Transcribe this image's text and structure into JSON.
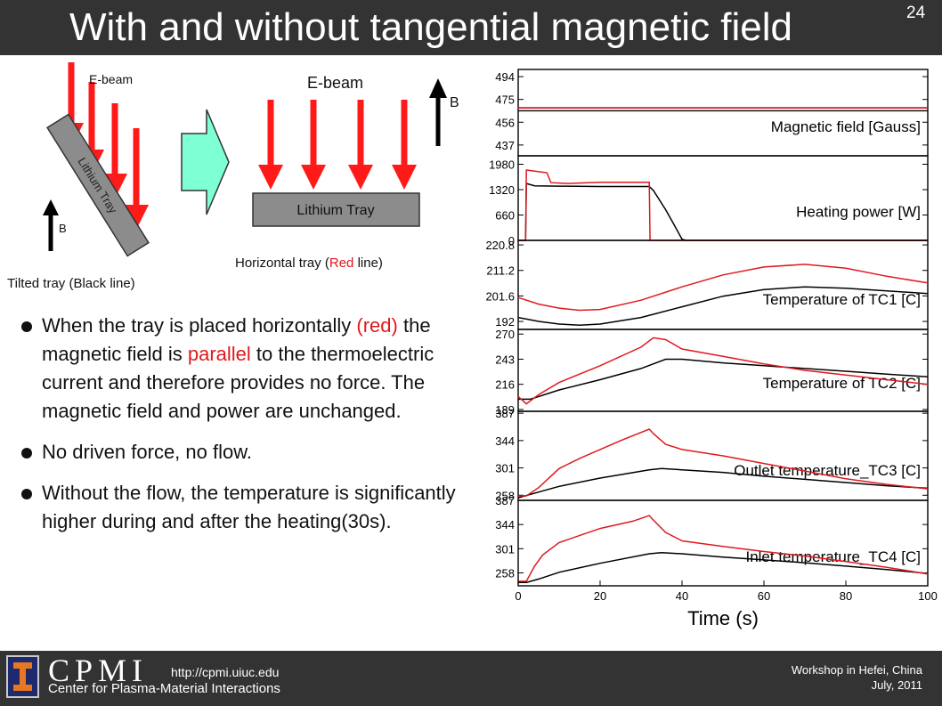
{
  "slide": {
    "title": "With and without tangential magnetic field",
    "number": "24"
  },
  "diagram": {
    "left": {
      "ebeam_label": "E-beam",
      "tray_label": "Lithium Tray",
      "b_label": "B",
      "caption_prefix": "Tilted tray (",
      "caption_color_word": "Black",
      "caption_suffix": " line)"
    },
    "right": {
      "ebeam_label": "E-beam",
      "tray_label": "Lithium Tray",
      "b_label": "B",
      "caption_prefix": "Horizontal tray (",
      "caption_color_word": "Red",
      "caption_suffix": " line)"
    },
    "arrow_color": "#7fffd4",
    "beam_color": "#ff1a1a",
    "tray_color": "#8c8c8c"
  },
  "bullets": {
    "b1": {
      "t1": "When the tray is placed horizontally ",
      "t2": "(red)",
      "t3": " the magnetic field is ",
      "t4": "parallel",
      "t5": " to the thermoelectric current and therefore provides no force.  The magnetic field and power are unchanged."
    },
    "b2": "No driven force, no flow.",
    "b3": "Without the flow, the temperature is significantly higher during and after the heating(30s)."
  },
  "footer": {
    "logo_letters": "CPMI",
    "url": "http://cpmi.uiuc.edu",
    "org_name": "Center for Plasma-Material Interactions",
    "workshop": "Workshop in Hefei, China",
    "date": "July, 2011"
  },
  "chart_data": {
    "type": "line",
    "xlabel": "Time (s)",
    "xlim": [
      0,
      100
    ],
    "xticks": [
      0,
      20,
      40,
      60,
      80,
      100
    ],
    "colors": {
      "tilted": "#000000",
      "horizontal": "#e0191e"
    },
    "panels": [
      {
        "label": "Magnetic field [Gauss]",
        "ylim": [
          428,
          500
        ],
        "yticks": [
          494,
          475,
          456,
          437
        ],
        "break_between": [
          456,
          475
        ],
        "series": [
          {
            "color": "tilted",
            "points": [
              [
                0,
                468
              ],
              [
                100,
                468
              ]
            ]
          },
          {
            "color": "horizontal",
            "points": [
              [
                0,
                468
              ],
              [
                100,
                468
              ]
            ]
          }
        ]
      },
      {
        "label": "Heating power [W]",
        "ylim": [
          0,
          2200
        ],
        "yticks": [
          1980,
          1320,
          660,
          0
        ],
        "series": [
          {
            "color": "tilted",
            "points": [
              [
                0,
                0
              ],
              [
                1.8,
                0
              ],
              [
                2.0,
                1480
              ],
              [
                4,
                1420
              ],
              [
                10,
                1410
              ],
              [
                20,
                1400
              ],
              [
                32,
                1400
              ],
              [
                33,
                1300
              ],
              [
                36,
                800
              ],
              [
                38,
                420
              ],
              [
                40,
                30
              ],
              [
                41,
                0
              ],
              [
                100,
                0
              ]
            ]
          },
          {
            "color": "horizontal",
            "points": [
              [
                0,
                0
              ],
              [
                1.8,
                0
              ],
              [
                2.0,
                1830
              ],
              [
                7,
                1760
              ],
              [
                8,
                1500
              ],
              [
                12,
                1480
              ],
              [
                20,
                1510
              ],
              [
                32,
                1510
              ],
              [
                32.2,
                0
              ],
              [
                100,
                0
              ]
            ]
          }
        ]
      },
      {
        "label": "Temperature of TC1 [C]",
        "ylim": [
          189.0,
          222.5
        ],
        "yticks": [
          220.8,
          211.2,
          201.6,
          192.0
        ],
        "series": [
          {
            "color": "tilted",
            "points": [
              [
                0,
                193.5
              ],
              [
                5,
                192.0
              ],
              [
                10,
                191.0
              ],
              [
                15,
                190.6
              ],
              [
                20,
                191.0
              ],
              [
                30,
                193.5
              ],
              [
                40,
                197.5
              ],
              [
                50,
                201.5
              ],
              [
                60,
                204.0
              ],
              [
                70,
                205.0
              ],
              [
                80,
                204.5
              ],
              [
                90,
                203.5
              ],
              [
                100,
                202.5
              ]
            ]
          },
          {
            "color": "horizontal",
            "points": [
              [
                0,
                201.0
              ],
              [
                5,
                198.5
              ],
              [
                10,
                197.0
              ],
              [
                15,
                196.2
              ],
              [
                20,
                196.5
              ],
              [
                30,
                200.0
              ],
              [
                40,
                205.0
              ],
              [
                50,
                209.5
              ],
              [
                60,
                212.5
              ],
              [
                70,
                213.5
              ],
              [
                80,
                212.0
              ],
              [
                90,
                209.0
              ],
              [
                100,
                206.5
              ]
            ]
          }
        ]
      },
      {
        "label": "Temperature of TC2 [C]",
        "ylim": [
          187,
          275
        ],
        "yticks": [
          270,
          243,
          216,
          189
        ],
        "series": [
          {
            "color": "tilted",
            "points": [
              [
                0,
                200
              ],
              [
                3,
                200
              ],
              [
                10,
                210
              ],
              [
                20,
                221
              ],
              [
                30,
                233
              ],
              [
                36,
                243
              ],
              [
                40,
                243
              ],
              [
                50,
                239
              ],
              [
                60,
                236
              ],
              [
                70,
                233
              ],
              [
                80,
                230
              ],
              [
                90,
                227
              ],
              [
                100,
                224
              ]
            ]
          },
          {
            "color": "horizontal",
            "points": [
              [
                0,
                203
              ],
              [
                2,
                195
              ],
              [
                5,
                205
              ],
              [
                10,
                218
              ],
              [
                20,
                236
              ],
              [
                30,
                256
              ],
              [
                33,
                266
              ],
              [
                36,
                264
              ],
              [
                40,
                254
              ],
              [
                50,
                246
              ],
              [
                60,
                238
              ],
              [
                70,
                231
              ],
              [
                80,
                226
              ],
              [
                90,
                221
              ],
              [
                100,
                216
              ]
            ]
          }
        ]
      },
      {
        "label": "Outlet temperature_TC3 [C]",
        "ylim": [
          250,
          390
        ],
        "yticks": [
          387,
          344,
          301,
          258
        ],
        "series": [
          {
            "color": "tilted",
            "points": [
              [
                0,
                254
              ],
              [
                5,
                263
              ],
              [
                10,
                272
              ],
              [
                20,
                285
              ],
              [
                32,
                298
              ],
              [
                35,
                300
              ],
              [
                40,
                298
              ],
              [
                50,
                294
              ],
              [
                60,
                288
              ],
              [
                70,
                283
              ],
              [
                80,
                278
              ],
              [
                90,
                273
              ],
              [
                100,
                269
              ]
            ]
          },
          {
            "color": "horizontal",
            "points": [
              [
                0,
                257
              ],
              [
                2,
                257
              ],
              [
                5,
                270
              ],
              [
                10,
                300
              ],
              [
                15,
                316
              ],
              [
                20,
                330
              ],
              [
                25,
                344
              ],
              [
                32,
                362
              ],
              [
                33,
                355
              ],
              [
                36,
                338
              ],
              [
                40,
                330
              ],
              [
                50,
                320
              ],
              [
                60,
                308
              ],
              [
                70,
                296
              ],
              [
                80,
                284
              ],
              [
                90,
                275
              ],
              [
                100,
                268
              ]
            ]
          }
        ]
      },
      {
        "label": "Inlet temperature_TC4 [C]",
        "ylim": [
          235,
          387
        ],
        "yticks": [
          387,
          344,
          301,
          258
        ],
        "series": [
          {
            "color": "tilted",
            "points": [
              [
                0,
                241
              ],
              [
                2,
                241
              ],
              [
                5,
                247
              ],
              [
                10,
                259
              ],
              [
                20,
                275
              ],
              [
                32,
                292
              ],
              [
                35,
                294
              ],
              [
                40,
                292
              ],
              [
                50,
                286
              ],
              [
                60,
                281
              ],
              [
                70,
                276
              ],
              [
                80,
                270
              ],
              [
                90,
                264
              ],
              [
                100,
                257
              ]
            ]
          },
          {
            "color": "horizontal",
            "points": [
              [
                0,
                243
              ],
              [
                2,
                243
              ],
              [
                4,
                270
              ],
              [
                6,
                290
              ],
              [
                10,
                312
              ],
              [
                20,
                337
              ],
              [
                28,
                350
              ],
              [
                32,
                360
              ],
              [
                33,
                352
              ],
              [
                36,
                330
              ],
              [
                40,
                315
              ],
              [
                50,
                305
              ],
              [
                60,
                296
              ],
              [
                70,
                288
              ],
              [
                80,
                278
              ],
              [
                90,
                268
              ],
              [
                100,
                256
              ]
            ]
          }
        ]
      }
    ]
  }
}
